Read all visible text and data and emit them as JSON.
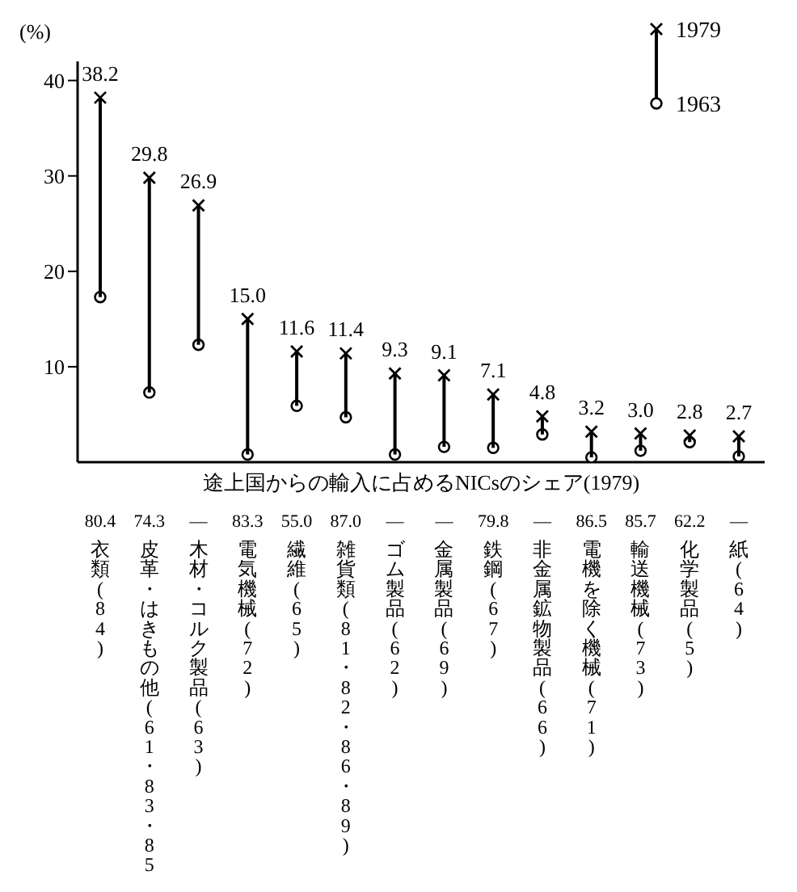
{
  "chart_data": {
    "type": "scatter",
    "ylabel": "(%)",
    "categories": [
      "衣類(84)",
      "皮革・はきもの他(61・83・85",
      "木材・コルク製品(63)",
      "電気機械(72)",
      "繊維(65)",
      "雑貨類(81・82・86・89)",
      "ゴム製品(62)",
      "金属製品(69)",
      "鉄鋼(67)",
      "非金属鉱物製品(66)",
      "電機を除く機械(71)",
      "輸送機械(73)",
      "化学製品(5)",
      "紙(64)"
    ],
    "series": [
      {
        "name": "1979",
        "color": "#000000",
        "marker": "cross",
        "values": [
          38.2,
          29.8,
          26.9,
          15.0,
          11.6,
          11.4,
          9.3,
          9.1,
          7.1,
          4.8,
          3.2,
          3.0,
          2.8,
          2.7
        ],
        "value_labels": [
          "38.2",
          "29.8",
          "26.9",
          "15.0",
          "11.6",
          "11.4",
          "9.3",
          "9.1",
          "7.1",
          "4.8",
          "3.2",
          "3.0",
          "2.8",
          "2.7"
        ]
      },
      {
        "name": "1963",
        "color": "#000000",
        "marker": "circle",
        "values": [
          17.3,
          7.3,
          12.3,
          0.8,
          5.9,
          4.7,
          0.8,
          1.6,
          1.5,
          2.9,
          0.5,
          1.2,
          2.1,
          0.6
        ]
      }
    ],
    "ylim": [
      0,
      42
    ],
    "yticks": [
      10,
      20,
      30,
      40
    ],
    "grid": false,
    "legend": "top right",
    "annotations": [
      "途上国からの輸入に占めるNICsのシェア(1979)",
      "80.4",
      "74.3",
      "—",
      "83.3",
      "55.0",
      "87.0",
      "—",
      "—",
      "79.8",
      "—",
      "86.5",
      "85.7",
      "62.2",
      "—"
    ]
  }
}
